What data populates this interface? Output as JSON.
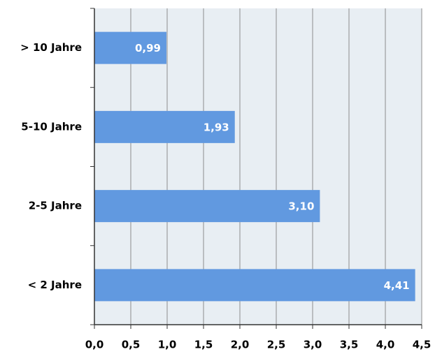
{
  "chart_data": {
    "type": "hbar",
    "categories": [
      "> 10 Jahre",
      "5-10 Jahre",
      "2-5 Jahre",
      "< 2 Jahre"
    ],
    "values": [
      0.99,
      1.93,
      3.1,
      4.41
    ],
    "value_labels": [
      "0,99",
      "1,93",
      "3,10",
      "4,41"
    ],
    "color": "#6199e0",
    "xlim": [
      0,
      4.5
    ],
    "xticks": [
      {
        "value": 0,
        "label": "0,0"
      },
      {
        "value": 0.5,
        "label": "0,5"
      },
      {
        "value": 1,
        "label": "1,0"
      },
      {
        "value": 1.5,
        "label": "1,5"
      },
      {
        "value": 2,
        "label": "2,0"
      },
      {
        "value": 2.5,
        "label": "2,5"
      },
      {
        "value": 3,
        "label": "3,0"
      },
      {
        "value": 3.5,
        "label": "3,5"
      },
      {
        "value": 4,
        "label": "4,0"
      },
      {
        "value": 4.5,
        "label": "4,5"
      }
    ],
    "grid": true
  }
}
